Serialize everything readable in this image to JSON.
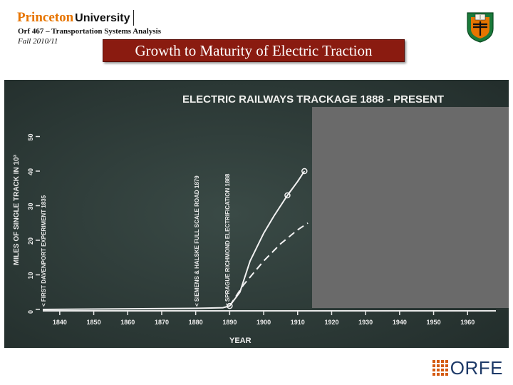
{
  "header": {
    "logo_name": "Princeton",
    "logo_suffix": "University",
    "course": "Orf 467 – Transportation Systems Analysis",
    "term": "Fall 2010/11",
    "title": "Growth to Maturity of Electric Traction"
  },
  "chart": {
    "title": "ELECTRIC  RAILWAYS  TRACKAGE  1888 - PRESENT",
    "xlabel": "YEAR",
    "ylabel": "MILES OF SINGLE TRACK IN 10³",
    "x_ticks": [
      "1840",
      "1850",
      "1860",
      "1870",
      "1880",
      "1890",
      "1900",
      "1910",
      "1920",
      "1930",
      "1940",
      "1950",
      "1960"
    ],
    "y_ticks": [
      "0",
      "10",
      "20",
      "30",
      "40",
      "50"
    ],
    "annotations": [
      "< FIRST DAVENPORT EXPERIMENT 1835",
      "< SIEMENS & HALSKE FULL SCALE ROAD 1879",
      "< SPRAGUE RICHMOND ELECTRIFICATION 1888"
    ]
  },
  "chart_data": {
    "type": "line",
    "title": "ELECTRIC RAILWAYS TRACKAGE 1888 - PRESENT",
    "xlabel": "YEAR",
    "ylabel": "MILES OF SINGLE TRACK IN 10³",
    "xlim": [
      1835,
      1967
    ],
    "ylim": [
      0,
      52
    ],
    "grid": false,
    "series": [
      {
        "x": [
          1835,
          1880,
          1888,
          1890,
          1893,
          1896,
          1900,
          1903,
          1907,
          1910,
          1912
        ],
        "y": [
          0,
          0.3,
          0.5,
          1,
          5,
          14,
          22,
          27,
          33,
          37,
          40
        ],
        "style": "solid-with-circles"
      },
      {
        "x": [
          1890,
          1894,
          1900,
          1905,
          1910,
          1913
        ],
        "y": [
          1,
          7,
          14,
          19,
          23,
          25
        ],
        "style": "dashed"
      }
    ]
  },
  "colors": {
    "title_bg": "#8a1b10",
    "slide_bg": "#2e3d3a",
    "overlay": "#6a6a6a",
    "orfe_grid": "#d45a10",
    "orfe_text": "#1e3a68"
  },
  "footer": {
    "logo": "ORFE"
  }
}
